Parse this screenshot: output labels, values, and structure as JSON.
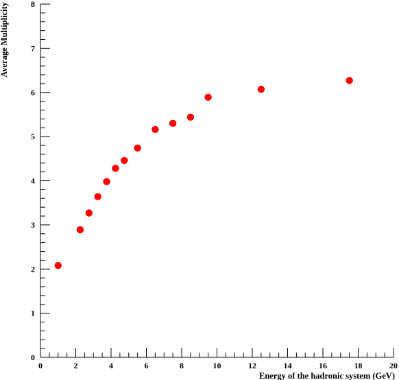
{
  "chart_data": {
    "type": "scatter",
    "xlabel": "Energy of the hadronic system (GeV)",
    "ylabel": "Average Multiplicity",
    "xlim": [
      0,
      20
    ],
    "ylim": [
      0,
      8
    ],
    "x_ticks": [
      0,
      2,
      4,
      6,
      8,
      10,
      12,
      14,
      16,
      18,
      20
    ],
    "y_ticks": [
      0,
      1,
      2,
      3,
      4,
      5,
      6,
      7,
      8
    ],
    "x_minor_step": 0.5,
    "y_minor_step": 0.2,
    "grid": false,
    "marker_color": "#ff0000",
    "series": [
      {
        "points": [
          {
            "x": 1.0,
            "y": 2.08
          },
          {
            "x": 2.25,
            "y": 2.89
          },
          {
            "x": 2.75,
            "y": 3.27
          },
          {
            "x": 3.25,
            "y": 3.64
          },
          {
            "x": 3.75,
            "y": 3.98
          },
          {
            "x": 4.25,
            "y": 4.28
          },
          {
            "x": 4.75,
            "y": 4.46
          },
          {
            "x": 5.5,
            "y": 4.74
          },
          {
            "x": 6.5,
            "y": 5.16
          },
          {
            "x": 7.5,
            "y": 5.3
          },
          {
            "x": 8.5,
            "y": 5.44
          },
          {
            "x": 9.5,
            "y": 5.89
          },
          {
            "x": 12.5,
            "y": 6.07
          },
          {
            "x": 17.5,
            "y": 6.27
          }
        ]
      }
    ]
  }
}
